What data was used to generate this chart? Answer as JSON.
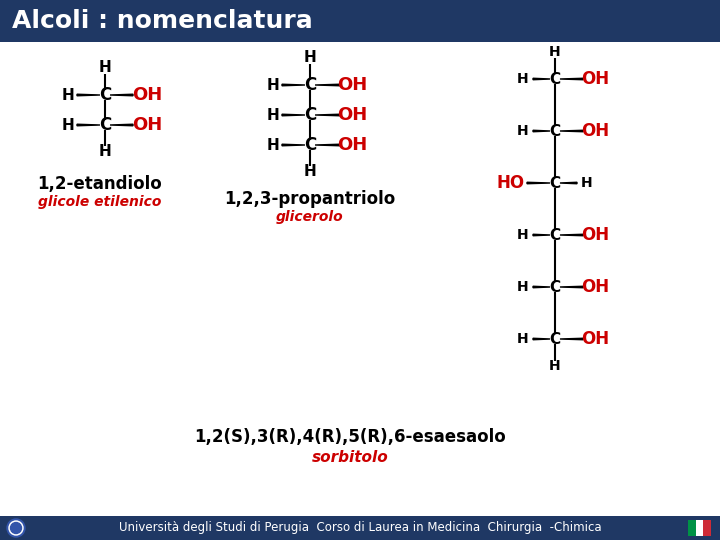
{
  "title": "Alcoli : nomenclatura",
  "title_bg": "#1F3864",
  "title_color": "#FFFFFF",
  "title_fontsize": 18,
  "bg_color": "#FFFFFF",
  "footer_bg": "#1F3864",
  "footer_text": "Università degli Studi di Perugia  Corso di Laurea in Medicina  Chirurgia  -Chimica",
  "footer_color": "#FFFFFF",
  "footer_fontsize": 8.5,
  "red": "#CC0000",
  "black": "#000000",
  "m1_label_black": "1,2-etandiolo",
  "m1_label_red": "glicole etilenico",
  "m2_label_black": "1,2,3-propantriolo",
  "m2_label_red": "glicerolo",
  "bottom_black": "1,2(S),3(R),4(R),5(R),6-esaesaolo",
  "bottom_red": "sorbitolo"
}
